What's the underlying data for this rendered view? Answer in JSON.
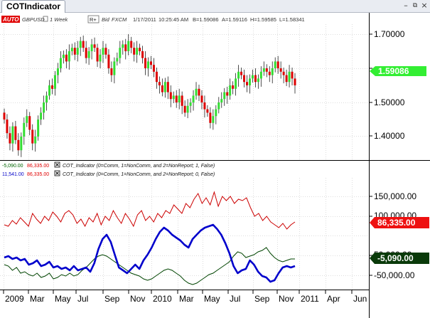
{
  "window": {
    "title": "COTIndicator",
    "minimize_icon": "minimize-icon",
    "restore_icon": "restore-icon",
    "close_icon": "close-icon"
  },
  "header": {
    "auto_label": "AUTO",
    "symbol": "GBPUSD",
    "interval": "1 Week",
    "r_button": "R+",
    "bid_label": "Bid",
    "feed": "FXCM",
    "date": "1/17/2011",
    "time": "10:25:45 AM",
    "bid_value": "B=1.59086",
    "ask_value": "A=1.59116",
    "high_value": "H=1.59585",
    "low_value": "L=1.58341"
  },
  "price_axis": {
    "ticks": [
      "1.70000",
      "1.60000",
      "1.50000",
      "1.40000"
    ],
    "last_price": "1.59086"
  },
  "indicator_legend": [
    {
      "value1": "-5,090.00",
      "value2": "86,335.00",
      "text": "COT_Indicator (0=Comm, 1=NonComm, and 2=NonReport; 1, False)",
      "color1": "#006400",
      "color2": "#e00000"
    },
    {
      "value1": "11,541.00",
      "value2": "86,335.00",
      "text": "COT_Indicator (0=Comm, 1=NonComm, and 2=NonReport; 0, False)",
      "color1": "#0000c8",
      "color2": "#e00000"
    }
  ],
  "indicator_axis": {
    "ticks": [
      "150,000.00",
      "100,000.00",
      "50,000.00",
      "-50,000.00"
    ],
    "red_value": "86,335.00",
    "green_value": "-5,090.00"
  },
  "time_axis": {
    "labels": [
      "2009",
      "Mar",
      "May",
      "Jul",
      "Sep",
      "Nov",
      "2010",
      "Mar",
      "May",
      "Jul",
      "Sep",
      "Nov",
      "2011",
      "Apr",
      "Jun"
    ]
  },
  "colors": {
    "up_candle": "#33dd33",
    "down_candle": "#dd0000",
    "last_price_badge": "#33ee33",
    "red_line": "#cc0000",
    "blue_line": "#0000cc",
    "green_line": "#004400"
  }
}
